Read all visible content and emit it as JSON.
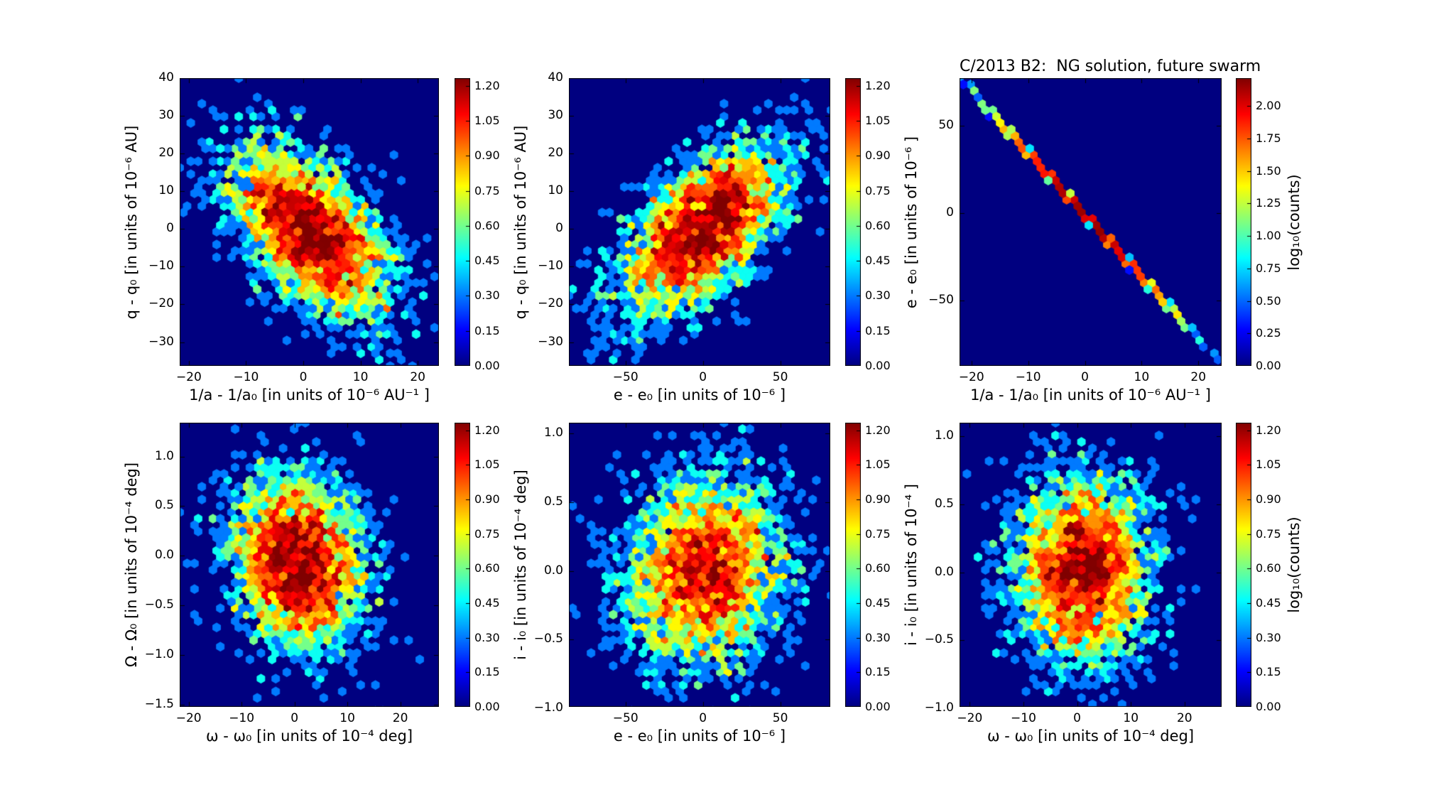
{
  "title": "C/2013 B2:  NG solution, future swarm",
  "colorbar_label": "log₁₀(counts)",
  "colormap": "jet",
  "background_color": "#000083",
  "chart_data": [
    {
      "id": "q-vs-inv-a",
      "type": "hexbin",
      "xlabel": "1/a - 1/a₀ [in units of 10⁻⁶ AU⁻¹ ]",
      "ylabel": "q - q₀ [in units of 10⁻⁶ AU]",
      "xlim": [
        -21.6,
        23.7
      ],
      "ylim": [
        -36.3,
        40
      ],
      "xtick_values": [
        -20,
        -10,
        0,
        10,
        20
      ],
      "xtick_labels": [
        "−20",
        "−10",
        "0",
        "10",
        "20"
      ],
      "ytick_values": [
        40,
        30,
        20,
        10,
        0,
        -10,
        -20,
        -30
      ],
      "ytick_labels": [
        "40",
        "30",
        "20",
        "10",
        "0",
        "−10",
        "−20",
        "−30"
      ],
      "grid": false,
      "colorbar": {
        "vmax": 1.233,
        "tick_values": [
          1.2,
          1.05,
          0.9,
          0.75,
          0.6,
          0.45,
          0.3,
          0.15,
          0.0
        ],
        "tick_labels": [
          "1.20",
          "1.05",
          "0.90",
          "0.75",
          "0.60",
          "0.45",
          "0.30",
          "0.15",
          "0.00"
        ],
        "label": ""
      },
      "distribution": {
        "kind": "gaussian",
        "n": 3200,
        "center": [
          1.0,
          -0.5
        ],
        "sigma": [
          7.0,
          11.5
        ],
        "rho": -0.55
      }
    },
    {
      "id": "q-vs-e",
      "type": "hexbin",
      "xlabel": "e - e₀ [in units of 10⁻⁶ ]",
      "ylabel": "q - q₀ [in units of 10⁻⁶ AU]",
      "xlim": [
        -86.6,
        82.3
      ],
      "ylim": [
        -36.3,
        40
      ],
      "xtick_values": [
        -50,
        0,
        50
      ],
      "xtick_labels": [
        "−50",
        "0",
        "50"
      ],
      "ytick_values": [
        40,
        30,
        20,
        10,
        0,
        -10,
        -20,
        -30
      ],
      "ytick_labels": [
        "40",
        "30",
        "20",
        "10",
        "0",
        "−10",
        "−20",
        "−30"
      ],
      "grid": false,
      "colorbar": {
        "vmax": 1.233,
        "tick_values": [
          1.2,
          1.05,
          0.9,
          0.75,
          0.6,
          0.45,
          0.3,
          0.15,
          0.0
        ],
        "tick_labels": [
          "1.20",
          "1.05",
          "0.90",
          "0.75",
          "0.60",
          "0.45",
          "0.30",
          "0.15",
          "0.00"
        ],
        "label": ""
      },
      "distribution": {
        "kind": "gaussian",
        "n": 3200,
        "center": [
          0.0,
          0.0
        ],
        "sigma": [
          27.0,
          11.5
        ],
        "rho": 0.62
      }
    },
    {
      "id": "e-vs-inv-a",
      "type": "hexbin",
      "xlabel": "1/a - 1/a₀ [in units of 10⁻⁶ AU⁻¹ ]",
      "ylabel": "e - e₀ [in units of 10⁻⁶ ]",
      "xlim": [
        -22.1,
        24.1
      ],
      "ylim": [
        -87.5,
        77.3
      ],
      "xtick_values": [
        -20,
        -10,
        0,
        10,
        20
      ],
      "xtick_labels": [
        "−20",
        "−10",
        "0",
        "10",
        "20"
      ],
      "ytick_values": [
        50,
        0,
        -50
      ],
      "ytick_labels": [
        "50",
        "0",
        "−50"
      ],
      "grid": false,
      "colorbar": {
        "vmax": 2.215,
        "tick_values": [
          2.0,
          1.75,
          1.5,
          1.25,
          1.0,
          0.75,
          0.5,
          0.25,
          0.0
        ],
        "tick_labels": [
          "2.00",
          "1.75",
          "1.50",
          "1.25",
          "1.00",
          "0.75",
          "0.50",
          "0.25",
          "0.00"
        ],
        "label": "log₁₀(counts)"
      },
      "distribution": {
        "kind": "line",
        "n": 3200,
        "sigma": 8.0,
        "slope": -3.55,
        "intercept": -1.0,
        "jitter": 0.25
      }
    },
    {
      "id": "Omega-vs-omega",
      "type": "hexbin",
      "xlabel": "ω - ω₀ [in units of 10⁻⁴ deg]",
      "ylabel": "Ω - Ω₀ [in units of 10⁻⁴ deg]",
      "xlim": [
        -21.7,
        27.3
      ],
      "ylim": [
        -1.52,
        1.34
      ],
      "xtick_values": [
        -20,
        -10,
        0,
        10,
        20
      ],
      "xtick_labels": [
        "−20",
        "−10",
        "0",
        "10",
        "20"
      ],
      "ytick_values": [
        1.0,
        0.5,
        0.0,
        -0.5,
        -1.0,
        -1.5
      ],
      "ytick_labels": [
        "1.0",
        "0.5",
        "0.0",
        "−0.5",
        "−1.0",
        "−1.5"
      ],
      "grid": false,
      "colorbar": {
        "vmax": 1.233,
        "tick_values": [
          1.2,
          1.05,
          0.9,
          0.75,
          0.6,
          0.45,
          0.3,
          0.15,
          0.0
        ],
        "tick_labels": [
          "1.20",
          "1.05",
          "0.90",
          "0.75",
          "0.60",
          "0.45",
          "0.30",
          "0.15",
          "0.00"
        ],
        "label": ""
      },
      "distribution": {
        "kind": "gaussian",
        "n": 3200,
        "center": [
          0.5,
          -0.05
        ],
        "sigma": [
          6.3,
          0.43
        ],
        "rho": -0.15
      }
    },
    {
      "id": "i-vs-e",
      "type": "hexbin",
      "xlabel": "e - e₀ [in units of 10⁻⁶ ]",
      "ylabel": "i - i₀ [in units of 10⁻⁴ deg]",
      "xlim": [
        -86.6,
        82.3
      ],
      "ylim": [
        -0.99,
        1.08
      ],
      "xtick_values": [
        -50,
        0,
        50
      ],
      "xtick_labels": [
        "−50",
        "0",
        "50"
      ],
      "ytick_values": [
        1.0,
        0.5,
        0.0,
        -0.5,
        -1.0
      ],
      "ytick_labels": [
        "1.0",
        "0.5",
        "0.0",
        "−0.5",
        "−1.0"
      ],
      "grid": false,
      "colorbar": {
        "vmax": 1.233,
        "tick_values": [
          1.2,
          1.05,
          0.9,
          0.75,
          0.6,
          0.45,
          0.3,
          0.15,
          0.0
        ],
        "tick_labels": [
          "1.20",
          "1.05",
          "0.90",
          "0.75",
          "0.60",
          "0.45",
          "0.30",
          "0.15",
          "0.00"
        ],
        "label": ""
      },
      "distribution": {
        "kind": "gaussian",
        "n": 3200,
        "center": [
          0.0,
          0.0
        ],
        "sigma": [
          26.0,
          0.34
        ],
        "rho": 0.08
      }
    },
    {
      "id": "i-vs-omega",
      "type": "hexbin",
      "xlabel": "ω - ω₀ [in units of 10⁻⁴ deg]",
      "ylabel": "i - i₀ [in units of 10⁻⁴ ]",
      "xlim": [
        -21.9,
        26.9
      ],
      "ylim": [
        -0.99,
        1.1
      ],
      "xtick_values": [
        -20,
        -10,
        0,
        10,
        20
      ],
      "xtick_labels": [
        "−20",
        "−10",
        "0",
        "10",
        "20"
      ],
      "ytick_values": [
        1.0,
        0.5,
        0.0,
        -0.5,
        -1.0
      ],
      "ytick_labels": [
        "1.0",
        "0.5",
        "0.0",
        "−0.5",
        "−1.0"
      ],
      "grid": false,
      "colorbar": {
        "vmax": 1.233,
        "tick_values": [
          1.2,
          1.05,
          0.9,
          0.75,
          0.6,
          0.45,
          0.3,
          0.15,
          0.0
        ],
        "tick_labels": [
          "1.20",
          "1.05",
          "0.90",
          "0.75",
          "0.60",
          "0.45",
          "0.30",
          "0.15",
          "0.00"
        ],
        "label": ""
      },
      "distribution": {
        "kind": "gaussian",
        "n": 3200,
        "center": [
          1.0,
          0.02
        ],
        "sigma": [
          6.3,
          0.34
        ],
        "rho": 0.02
      }
    }
  ]
}
